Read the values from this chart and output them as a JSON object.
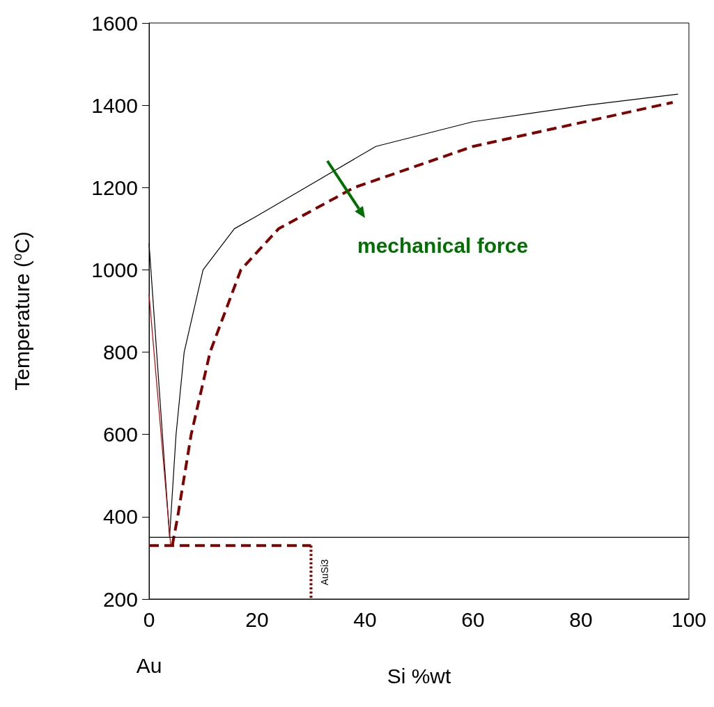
{
  "chart_data": {
    "type": "line",
    "xlabel": "Si %wt",
    "ylabel": "Temperature ($^{o}$C)",
    "xlim": [
      0,
      100
    ],
    "ylim": [
      200,
      1600
    ],
    "xticks": [
      0,
      20,
      40,
      60,
      80,
      100
    ],
    "yticks": [
      200,
      400,
      600,
      800,
      1000,
      1200,
      1400,
      1600
    ],
    "grid": false,
    "marker": "none",
    "series": [
      {
        "color": "#000000",
        "line_style": "solid",
        "x": [
          0,
          3.8
        ],
        "values": [
          1064,
          351
        ]
      },
      {
        "color": "#000000",
        "line_style": "solid",
        "x": [
          3.8,
          5,
          6.5,
          10,
          15.8,
          20,
          29,
          42,
          60,
          81,
          98
        ],
        "values": [
          351,
          600,
          800,
          1000,
          1100,
          1131,
          1200,
          1300,
          1360,
          1400,
          1427
        ]
      },
      {
        "color": "#800000",
        "line_style": "dashed",
        "x": [
          4.3,
          5.3,
          7.8,
          11.3,
          17,
          24,
          38,
          60,
          97
        ],
        "values": [
          330,
          400,
          600,
          800,
          1000,
          1100,
          1200,
          1300,
          1407
        ]
      },
      {
        "color": "#c00000",
        "line_style": "solid",
        "x": [
          0,
          4
        ],
        "values": [
          940,
          330
        ]
      },
      {
        "color": "#000000",
        "line_style": "solid",
        "x": [
          0,
          100
        ],
        "values": [
          350,
          350
        ]
      },
      {
        "color": "#800000",
        "line_style": "dashed",
        "x": [
          0,
          30
        ],
        "values": [
          330,
          330
        ]
      },
      {
        "color": "#800000",
        "line_style": "dotted",
        "x": [
          30,
          30
        ],
        "values": [
          330,
          200
        ]
      }
    ],
    "annotations": [
      "mechanical force",
      {
        "text": "AuSi3",
        "x": 30,
        "y": 265
      },
      "Au"
    ]
  }
}
